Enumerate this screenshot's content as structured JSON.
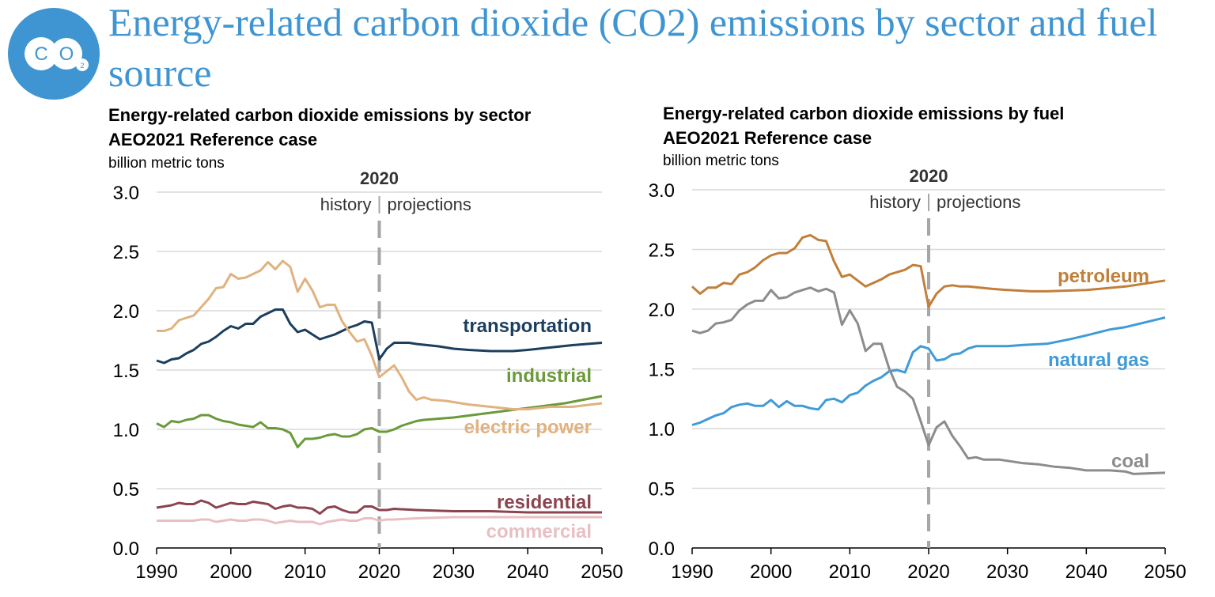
{
  "page": {
    "title": "Energy-related carbon dioxide (CO2) emissions by sector and fuel source",
    "logo_text": "CO2",
    "accent_color": "#3f95d2"
  },
  "chart_data": [
    {
      "type": "line",
      "title": "Energy-related carbon dioxide emissions by sector",
      "subtitle": "AEO2021 Reference case",
      "ylabel": "billion metric tons",
      "xlim": [
        1990,
        2050
      ],
      "ylim": [
        0,
        3.0
      ],
      "xticks": [
        "1990",
        "2000",
        "2010",
        "2020",
        "2030",
        "2040",
        "2050"
      ],
      "yticks": [
        "0.0",
        "0.5",
        "1.0",
        "1.5",
        "2.0",
        "2.5",
        "3.0"
      ],
      "grid": true,
      "divider": {
        "x": 2020,
        "label": "2020",
        "left_label": "history",
        "right_label": "projections"
      },
      "series": [
        {
          "name": "transportation",
          "color": "#1c3f5e",
          "x": [
            1990,
            1991,
            1992,
            1993,
            1994,
            1995,
            1996,
            1997,
            1998,
            1999,
            2000,
            2001,
            2002,
            2003,
            2004,
            2005,
            2006,
            2007,
            2008,
            2009,
            2010,
            2011,
            2012,
            2013,
            2014,
            2015,
            2016,
            2017,
            2018,
            2019,
            2020,
            2021,
            2022,
            2023,
            2024,
            2025,
            2028,
            2030,
            2032,
            2035,
            2038,
            2040,
            2043,
            2046,
            2050
          ],
          "y": [
            1.58,
            1.56,
            1.59,
            1.6,
            1.64,
            1.67,
            1.72,
            1.74,
            1.78,
            1.83,
            1.87,
            1.85,
            1.89,
            1.89,
            1.95,
            1.98,
            2.01,
            2.01,
            1.89,
            1.82,
            1.84,
            1.8,
            1.76,
            1.78,
            1.8,
            1.83,
            1.86,
            1.88,
            1.91,
            1.9,
            1.59,
            1.68,
            1.73,
            1.73,
            1.73,
            1.72,
            1.7,
            1.68,
            1.67,
            1.66,
            1.66,
            1.67,
            1.69,
            1.71,
            1.73
          ]
        },
        {
          "name": "industrial",
          "color": "#6a9a3a",
          "x": [
            1990,
            1991,
            1992,
            1993,
            1994,
            1995,
            1996,
            1997,
            1998,
            1999,
            2000,
            2001,
            2002,
            2003,
            2004,
            2005,
            2006,
            2007,
            2008,
            2009,
            2010,
            2011,
            2012,
            2013,
            2014,
            2015,
            2016,
            2017,
            2018,
            2019,
            2020,
            2021,
            2022,
            2023,
            2024,
            2025,
            2026,
            2030,
            2035,
            2040,
            2045,
            2050
          ],
          "y": [
            1.05,
            1.02,
            1.07,
            1.06,
            1.08,
            1.09,
            1.12,
            1.12,
            1.09,
            1.07,
            1.06,
            1.04,
            1.03,
            1.02,
            1.06,
            1.01,
            1.01,
            1.0,
            0.97,
            0.85,
            0.92,
            0.92,
            0.93,
            0.95,
            0.96,
            0.94,
            0.94,
            0.96,
            1.0,
            1.01,
            0.98,
            0.98,
            1.0,
            1.03,
            1.05,
            1.07,
            1.08,
            1.1,
            1.14,
            1.18,
            1.22,
            1.28
          ]
        },
        {
          "name": "electric power",
          "color": "#e0b27f",
          "x": [
            1990,
            1991,
            1992,
            1993,
            1994,
            1995,
            1996,
            1997,
            1998,
            1999,
            2000,
            2001,
            2002,
            2003,
            2004,
            2005,
            2006,
            2007,
            2008,
            2009,
            2010,
            2011,
            2012,
            2013,
            2014,
            2015,
            2016,
            2017,
            2018,
            2019,
            2020,
            2021,
            2022,
            2023,
            2024,
            2025,
            2026,
            2027,
            2029,
            2032,
            2035,
            2038,
            2040,
            2043,
            2046,
            2050
          ],
          "y": [
            1.83,
            1.83,
            1.85,
            1.92,
            1.94,
            1.96,
            2.03,
            2.1,
            2.19,
            2.2,
            2.31,
            2.27,
            2.28,
            2.31,
            2.34,
            2.41,
            2.35,
            2.42,
            2.37,
            2.16,
            2.27,
            2.17,
            2.03,
            2.05,
            2.05,
            1.91,
            1.82,
            1.74,
            1.76,
            1.62,
            1.44,
            1.49,
            1.54,
            1.44,
            1.32,
            1.25,
            1.27,
            1.25,
            1.24,
            1.21,
            1.19,
            1.17,
            1.17,
            1.19,
            1.19,
            1.22
          ]
        },
        {
          "name": "residential",
          "color": "#8b4550",
          "x": [
            1990,
            1991,
            1992,
            1993,
            1994,
            1995,
            1996,
            1997,
            1998,
            1999,
            2000,
            2001,
            2002,
            2003,
            2004,
            2005,
            2006,
            2007,
            2008,
            2009,
            2010,
            2011,
            2012,
            2013,
            2014,
            2015,
            2016,
            2017,
            2018,
            2019,
            2020,
            2021,
            2022,
            2025,
            2030,
            2035,
            2040,
            2045,
            2050
          ],
          "y": [
            0.34,
            0.35,
            0.36,
            0.38,
            0.37,
            0.37,
            0.4,
            0.38,
            0.34,
            0.36,
            0.38,
            0.37,
            0.37,
            0.39,
            0.38,
            0.37,
            0.33,
            0.35,
            0.36,
            0.34,
            0.34,
            0.33,
            0.29,
            0.34,
            0.35,
            0.32,
            0.3,
            0.3,
            0.35,
            0.35,
            0.32,
            0.32,
            0.33,
            0.32,
            0.31,
            0.31,
            0.3,
            0.3,
            0.3
          ]
        },
        {
          "name": "commercial",
          "color": "#e8bfc3",
          "x": [
            1990,
            1992,
            1994,
            1995,
            1996,
            1997,
            1998,
            1999,
            2000,
            2001,
            2002,
            2003,
            2004,
            2005,
            2006,
            2007,
            2008,
            2009,
            2010,
            2011,
            2012,
            2013,
            2014,
            2015,
            2016,
            2017,
            2018,
            2019,
            2020,
            2021,
            2022,
            2025,
            2030,
            2035,
            2040,
            2045,
            2050
          ],
          "y": [
            0.23,
            0.23,
            0.23,
            0.23,
            0.24,
            0.24,
            0.22,
            0.23,
            0.24,
            0.23,
            0.23,
            0.24,
            0.24,
            0.23,
            0.21,
            0.22,
            0.23,
            0.22,
            0.22,
            0.22,
            0.2,
            0.22,
            0.23,
            0.24,
            0.23,
            0.23,
            0.25,
            0.25,
            0.23,
            0.24,
            0.24,
            0.25,
            0.26,
            0.26,
            0.26,
            0.26,
            0.26
          ]
        }
      ]
    },
    {
      "type": "line",
      "title": "Energy-related carbon dioxide emissions by fuel",
      "subtitle": "AEO2021 Reference case",
      "ylabel": "billion metric tons",
      "xlim": [
        1990,
        2050
      ],
      "ylim": [
        0,
        3.0
      ],
      "xticks": [
        "1990",
        "2000",
        "2010",
        "2020",
        "2030",
        "2040",
        "2050"
      ],
      "yticks": [
        "0.0",
        "0.5",
        "1.0",
        "1.5",
        "2.0",
        "2.5",
        "3.0"
      ],
      "grid": true,
      "divider": {
        "x": 2020,
        "label": "2020",
        "left_label": "history",
        "right_label": "projections"
      },
      "series": [
        {
          "name": "petroleum",
          "color": "#c17f3a",
          "x": [
            1990,
            1991,
            1992,
            1993,
            1994,
            1995,
            1996,
            1997,
            1998,
            1999,
            2000,
            2001,
            2002,
            2003,
            2004,
            2005,
            2006,
            2007,
            2008,
            2009,
            2010,
            2011,
            2012,
            2013,
            2014,
            2015,
            2016,
            2017,
            2018,
            2019,
            2020,
            2021,
            2022,
            2023,
            2024,
            2025,
            2028,
            2030,
            2033,
            2035,
            2040,
            2045,
            2050
          ],
          "y": [
            2.19,
            2.13,
            2.18,
            2.18,
            2.22,
            2.21,
            2.29,
            2.31,
            2.35,
            2.41,
            2.45,
            2.47,
            2.47,
            2.51,
            2.6,
            2.62,
            2.58,
            2.57,
            2.4,
            2.27,
            2.29,
            2.24,
            2.19,
            2.22,
            2.25,
            2.29,
            2.31,
            2.33,
            2.37,
            2.36,
            2.02,
            2.13,
            2.19,
            2.2,
            2.19,
            2.19,
            2.17,
            2.16,
            2.15,
            2.15,
            2.16,
            2.19,
            2.24
          ]
        },
        {
          "name": "natural gas",
          "color": "#3f9bd8",
          "x": [
            1990,
            1991,
            1992,
            1993,
            1994,
            1995,
            1996,
            1997,
            1998,
            1999,
            2000,
            2001,
            2002,
            2003,
            2004,
            2005,
            2006,
            2007,
            2008,
            2009,
            2010,
            2011,
            2012,
            2013,
            2014,
            2015,
            2016,
            2017,
            2018,
            2019,
            2020,
            2021,
            2022,
            2023,
            2024,
            2025,
            2026,
            2028,
            2030,
            2032,
            2035,
            2038,
            2040,
            2043,
            2045,
            2050
          ],
          "y": [
            1.03,
            1.05,
            1.08,
            1.11,
            1.13,
            1.18,
            1.2,
            1.21,
            1.19,
            1.19,
            1.24,
            1.18,
            1.23,
            1.19,
            1.19,
            1.17,
            1.16,
            1.24,
            1.25,
            1.22,
            1.28,
            1.3,
            1.36,
            1.4,
            1.43,
            1.48,
            1.49,
            1.47,
            1.64,
            1.69,
            1.67,
            1.57,
            1.58,
            1.62,
            1.63,
            1.67,
            1.69,
            1.69,
            1.69,
            1.7,
            1.71,
            1.75,
            1.78,
            1.83,
            1.85,
            1.93
          ]
        },
        {
          "name": "coal",
          "color": "#8c8c8c",
          "x": [
            1990,
            1991,
            1992,
            1993,
            1994,
            1995,
            1996,
            1997,
            1998,
            1999,
            2000,
            2001,
            2002,
            2003,
            2004,
            2005,
            2006,
            2007,
            2008,
            2009,
            2010,
            2011,
            2012,
            2013,
            2014,
            2015,
            2016,
            2017,
            2018,
            2019,
            2020,
            2021,
            2022,
            2023,
            2024,
            2025,
            2026,
            2027,
            2029,
            2030,
            2032,
            2034,
            2036,
            2038,
            2040,
            2043,
            2045,
            2046,
            2050
          ],
          "y": [
            1.82,
            1.8,
            1.82,
            1.88,
            1.89,
            1.91,
            1.99,
            2.04,
            2.07,
            2.07,
            2.16,
            2.09,
            2.1,
            2.14,
            2.16,
            2.18,
            2.15,
            2.17,
            2.14,
            1.87,
            1.99,
            1.88,
            1.65,
            1.71,
            1.71,
            1.5,
            1.35,
            1.31,
            1.25,
            1.06,
            0.86,
            1.01,
            1.06,
            0.94,
            0.85,
            0.75,
            0.76,
            0.74,
            0.74,
            0.73,
            0.71,
            0.7,
            0.68,
            0.67,
            0.65,
            0.65,
            0.64,
            0.62,
            0.63
          ]
        }
      ]
    }
  ]
}
